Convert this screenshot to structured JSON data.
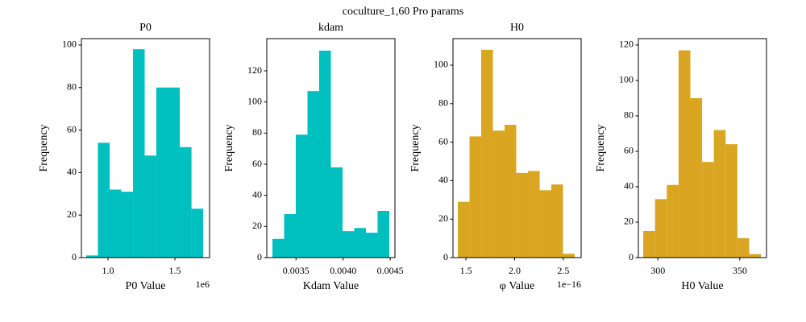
{
  "title": "coculture_1,60 Pro params",
  "chart_data": [
    {
      "type": "histogram",
      "title": "P0",
      "xlabel": "P0 Value",
      "ylabel": "Frequency",
      "x_offset_label": "1e6",
      "color": "#00bfbf",
      "bins": [
        0.837,
        0.924,
        1.012,
        1.099,
        1.187,
        1.274,
        1.361,
        1.449,
        1.536,
        1.624,
        1.711
      ],
      "values": [
        1,
        54,
        32,
        31,
        98,
        48,
        80,
        80,
        52,
        23
      ],
      "xlim": [
        0.801,
        1.759
      ],
      "xticks": [
        {
          "value": 1,
          "label": "1.0"
        },
        1.5
      ],
      "ylim": [
        0,
        103
      ],
      "yticks": [
        0,
        20,
        40,
        60,
        80,
        100
      ]
    },
    {
      "type": "histogram",
      "title": "kdam",
      "xlabel": "Kdam Value",
      "ylabel": "Frequency",
      "color": "#00bfbf",
      "bins": [
        0.00325,
        0.003374,
        0.003498,
        0.003622,
        0.003746,
        0.00387,
        0.003994,
        0.004118,
        0.004242,
        0.004366,
        0.00449
      ],
      "values": [
        12,
        28,
        79,
        107,
        133,
        58,
        17,
        19,
        16,
        30
      ],
      "xlim": [
        0.00319,
        0.00455
      ],
      "xticks": [
        0.0035,
        {
          "value": 0.004,
          "label": "0.0040"
        },
        0.0045
      ],
      "ylim": [
        0,
        140.7
      ],
      "yticks": [
        0,
        20,
        40,
        60,
        80,
        100,
        120
      ]
    },
    {
      "type": "histogram",
      "title": "H0",
      "xlabel": "φ Value",
      "ylabel": "Frequency",
      "x_offset_label": "1e−16",
      "color": "#daa520",
      "bins": [
        1.417,
        1.537,
        1.657,
        1.777,
        1.897,
        2.017,
        2.137,
        2.257,
        2.377,
        2.497,
        2.617
      ],
      "values": [
        29,
        63,
        108,
        66,
        69,
        44,
        45,
        35,
        38,
        2
      ],
      "xlim": [
        1.367,
        2.683
      ],
      "xticks": [
        1.5,
        {
          "value": 2,
          "label": "2.0"
        },
        2.5
      ],
      "ylim": [
        0,
        113.8
      ],
      "yticks": [
        0,
        20,
        40,
        60,
        80,
        100
      ]
    },
    {
      "type": "histogram",
      "xlabel": "H0 Value",
      "ylabel": "Frequency",
      "color": "#daa520",
      "bins": [
        291.1,
        298.28,
        305.46,
        312.64,
        319.82,
        327.0,
        334.18,
        341.36,
        348.54,
        355.72,
        362.9
      ],
      "values": [
        15,
        33,
        41,
        117,
        90,
        54,
        72,
        64,
        11,
        2
      ],
      "xlim": [
        288.1,
        366.3
      ],
      "xticks": [
        300,
        350
      ],
      "ylim": [
        0,
        123.6
      ],
      "yticks": [
        0,
        20,
        40,
        60,
        80,
        100,
        120
      ]
    }
  ]
}
